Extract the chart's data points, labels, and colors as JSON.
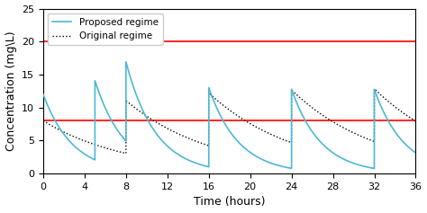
{
  "title": "",
  "xlabel": "Time (hours)",
  "ylabel": "Concentration (mg\\L)",
  "xlim": [
    0,
    36
  ],
  "ylim": [
    0,
    25
  ],
  "xticks": [
    0,
    4,
    8,
    12,
    16,
    20,
    24,
    28,
    32,
    36
  ],
  "yticks": [
    0,
    5,
    10,
    15,
    20,
    25
  ],
  "hlines": [
    8.0,
    20.0
  ],
  "hline_color": "red",
  "proposed_color": "#4db8d4",
  "original_color": "black",
  "proposed_label": "Proposed regime",
  "original_label": "Original regime",
  "legend_loc": "upper left",
  "proposed_dose": 12.0,
  "original_dose": 8.0,
  "ke_proposed": 0.35,
  "ke_original": 0.12,
  "proposed_dose_times": [
    0,
    5,
    8,
    16,
    24,
    32
  ],
  "original_dose_times": [
    0,
    8,
    16,
    24,
    32
  ],
  "t_end": 36,
  "figsize": [
    4.74,
    2.37
  ],
  "dpi": 100
}
